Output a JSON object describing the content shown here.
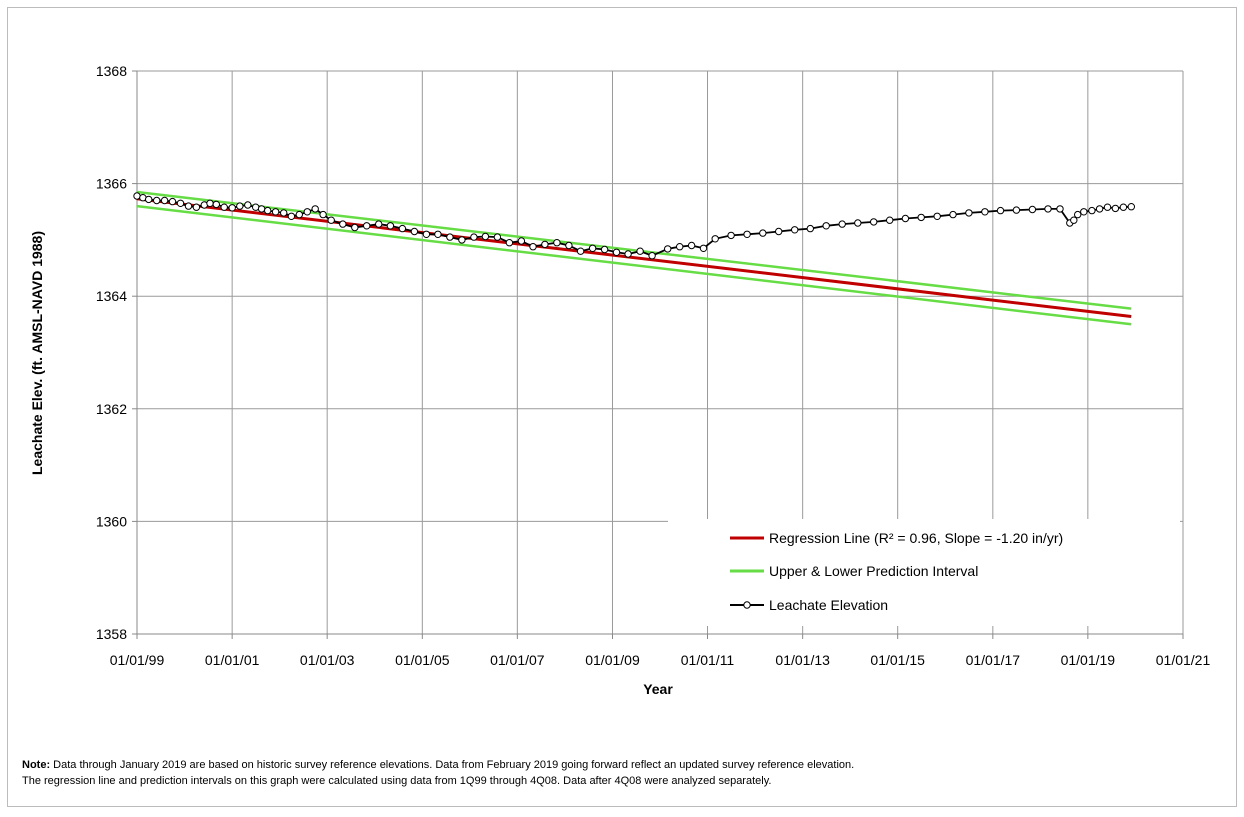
{
  "chart_data": {
    "type": "line",
    "xlabel": "Year",
    "ylabel": "Leachate Elev. (ft. AMSL-NAVD 1988)",
    "xlim": [
      "1999-01-01",
      "2021-01-01"
    ],
    "ylim": [
      1358,
      1368
    ],
    "x_ticks": [
      "01/01/99",
      "01/01/01",
      "01/01/03",
      "01/01/05",
      "01/01/07",
      "01/01/09",
      "01/01/11",
      "01/01/13",
      "01/01/15",
      "01/01/17",
      "01/01/19",
      "01/01/21"
    ],
    "y_ticks": [
      "1358",
      "1360",
      "1362",
      "1364",
      "1366",
      "1368"
    ],
    "grid": true,
    "legend_position": "bottom-right",
    "colors": {
      "regression": "#c00000",
      "interval": "#66dd44",
      "leachate": "#000000"
    },
    "series": [
      {
        "name": "Regression Line (R² = 0.96, Slope = -1.20 in/yr)",
        "type": "line",
        "x": [
          "1999-01-01",
          "2019-12-01"
        ],
        "y": [
          1365.73,
          1363.64
        ]
      },
      {
        "name": "Upper & Lower Prediction Interval",
        "type": "line",
        "x": [
          "1999-01-01",
          "2019-12-01"
        ],
        "y": [
          1365.85,
          1363.78
        ]
      },
      {
        "name": "Upper & Lower Prediction Interval",
        "type": "line",
        "legend": false,
        "x": [
          "1999-01-01",
          "2019-12-01"
        ],
        "y": [
          1365.6,
          1363.5
        ]
      },
      {
        "name": "Leachate Elevation",
        "type": "line-marker",
        "x": [
          "1999-01-01",
          "1999-02-15",
          "1999-04-01",
          "1999-06-01",
          "1999-08-01",
          "1999-10-01",
          "1999-12-01",
          "2000-02-01",
          "2000-04-01",
          "2000-06-01",
          "2000-07-15",
          "2000-09-01",
          "2000-11-01",
          "2001-01-01",
          "2001-03-01",
          "2001-05-01",
          "2001-07-01",
          "2001-08-15",
          "2001-10-01",
          "2001-12-01",
          "2002-02-01",
          "2002-04-01",
          "2002-06-01",
          "2002-08-01",
          "2002-10-01",
          "2002-12-01",
          "2003-02-01",
          "2003-05-01",
          "2003-08-01",
          "2003-11-01",
          "2004-02-01",
          "2004-05-01",
          "2004-08-01",
          "2004-11-01",
          "2005-02-01",
          "2005-05-01",
          "2005-08-01",
          "2005-11-01",
          "2006-02-01",
          "2006-05-01",
          "2006-08-01",
          "2006-11-01",
          "2007-02-01",
          "2007-05-01",
          "2007-08-01",
          "2007-11-01",
          "2008-02-01",
          "2008-05-01",
          "2008-08-01",
          "2008-11-01",
          "2009-02-01",
          "2009-05-01",
          "2009-08-01",
          "2009-11-01",
          "2010-03-01",
          "2010-06-01",
          "2010-09-01",
          "2010-12-01",
          "2011-03-01",
          "2011-07-01",
          "2011-11-01",
          "2012-03-01",
          "2012-07-01",
          "2012-11-01",
          "2013-03-01",
          "2013-07-01",
          "2013-11-01",
          "2014-03-01",
          "2014-07-01",
          "2014-11-01",
          "2015-03-01",
          "2015-07-01",
          "2015-11-01",
          "2016-03-01",
          "2016-07-01",
          "2016-11-01",
          "2017-03-01",
          "2017-07-01",
          "2017-11-01",
          "2018-03-01",
          "2018-06-01",
          "2018-08-15",
          "2018-09-15",
          "2018-10-15",
          "2018-12-01",
          "2019-02-01",
          "2019-04-01",
          "2019-06-01",
          "2019-08-01",
          "2019-10-01",
          "2019-12-01"
        ],
        "y": [
          1365.78,
          1365.75,
          1365.72,
          1365.7,
          1365.7,
          1365.68,
          1365.65,
          1365.6,
          1365.58,
          1365.62,
          1365.65,
          1365.63,
          1365.58,
          1365.57,
          1365.6,
          1365.62,
          1365.58,
          1365.55,
          1365.52,
          1365.5,
          1365.48,
          1365.42,
          1365.45,
          1365.5,
          1365.55,
          1365.45,
          1365.35,
          1365.28,
          1365.22,
          1365.25,
          1365.28,
          1365.25,
          1365.2,
          1365.15,
          1365.1,
          1365.1,
          1365.05,
          1365.0,
          1365.05,
          1365.06,
          1365.05,
          1364.95,
          1364.98,
          1364.88,
          1364.92,
          1364.95,
          1364.9,
          1364.8,
          1364.85,
          1364.83,
          1364.78,
          1364.75,
          1364.8,
          1364.72,
          1364.84,
          1364.88,
          1364.9,
          1364.85,
          1365.02,
          1365.08,
          1365.1,
          1365.12,
          1365.15,
          1365.18,
          1365.2,
          1365.25,
          1365.28,
          1365.3,
          1365.32,
          1365.35,
          1365.38,
          1365.4,
          1365.42,
          1365.45,
          1365.48,
          1365.5,
          1365.52,
          1365.53,
          1365.54,
          1365.55,
          1365.55,
          1365.3,
          1365.35,
          1365.45,
          1365.5,
          1365.52,
          1365.55,
          1365.58,
          1365.56,
          1365.58,
          1365.59
        ]
      }
    ]
  },
  "note": {
    "label": "Note:",
    "text": " Data through January 2019 are based on historic survey reference elevations. Data from February 2019 going forward reflect an updated survey reference elevation. The regression line and prediction intervals on this graph were calculated using data from 1Q99 through 4Q08. Data after 4Q08 were analyzed separately."
  },
  "legend": {
    "regression_label": "Regression Line (R² = 0.96, Slope = -1.20 in/yr)",
    "interval_label": "Upper & Lower Prediction Interval",
    "leachate_label": "Leachate Elevation"
  }
}
